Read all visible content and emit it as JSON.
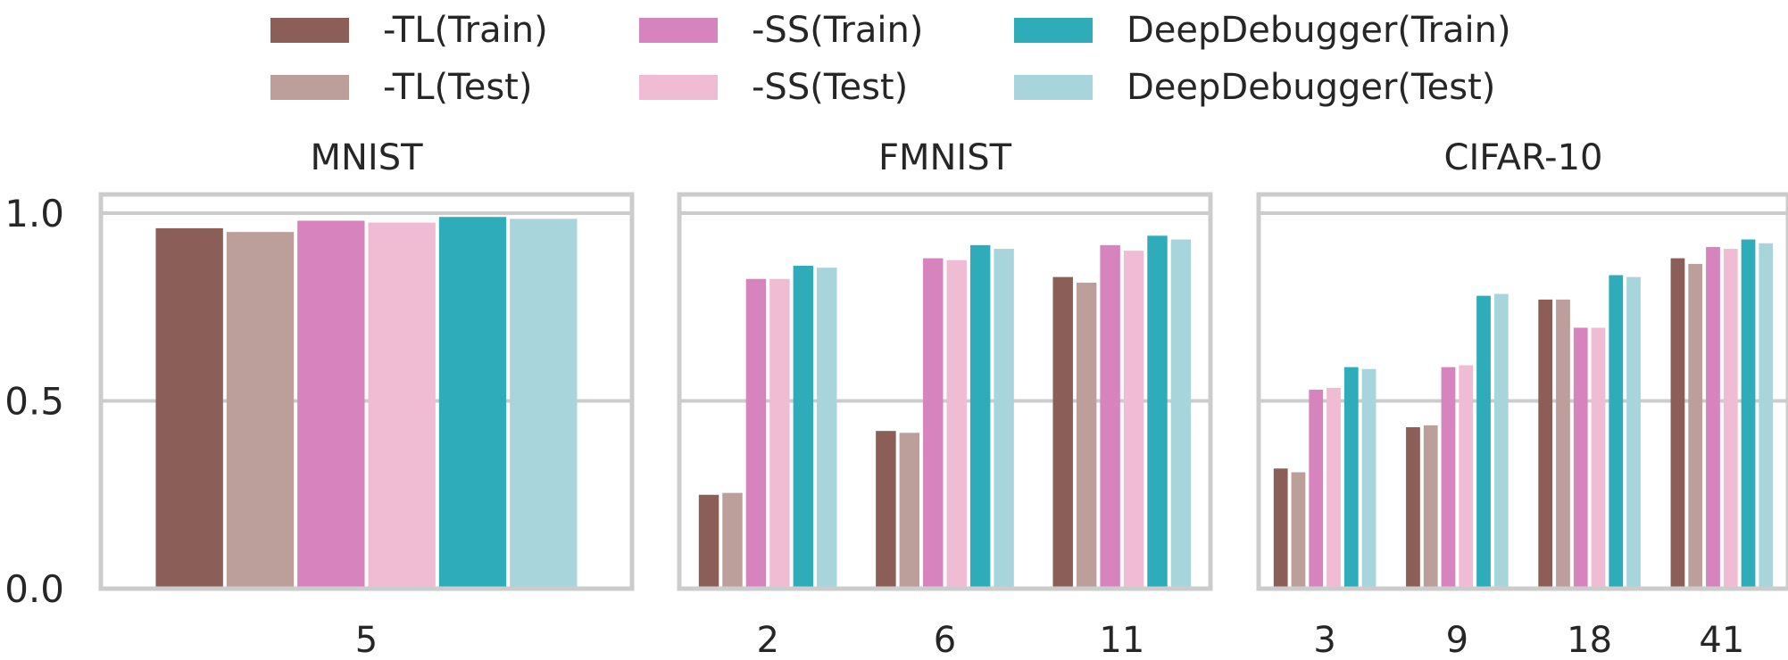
{
  "chart_data": {
    "type": "bar",
    "legend": {
      "placement": "top-center",
      "entries": [
        {
          "label": "-TL(Train)",
          "color": "#8c5e58"
        },
        {
          "label": "-TL(Test)",
          "color": "#bc9e9a"
        },
        {
          "label": "-SS(Train)",
          "color": "#d683be"
        },
        {
          "label": "-SS(Test)",
          "color": "#f0bcd4"
        },
        {
          "label": "DeepDebugger(Train)",
          "color": "#2eacba"
        },
        {
          "label": "DeepDebugger(Test)",
          "color": "#a8d4dc"
        }
      ]
    },
    "ylim": [
      0,
      1
    ],
    "yticks": [
      "0.0",
      "0.5",
      "1.0"
    ],
    "grid": true,
    "panels": [
      {
        "title": "MNIST",
        "categories": [
          "5"
        ],
        "series": [
          {
            "name": "-TL(Train)",
            "values": [
              0.96
            ]
          },
          {
            "name": "-TL(Test)",
            "values": [
              0.95
            ]
          },
          {
            "name": "-SS(Train)",
            "values": [
              0.98
            ]
          },
          {
            "name": "-SS(Test)",
            "values": [
              0.975
            ]
          },
          {
            "name": "DeepDebugger(Train)",
            "values": [
              0.99
            ]
          },
          {
            "name": "DeepDebugger(Test)",
            "values": [
              0.985
            ]
          }
        ]
      },
      {
        "title": "FMNIST",
        "categories": [
          "2",
          "6",
          "11"
        ],
        "series": [
          {
            "name": "-TL(Train)",
            "values": [
              0.25,
              0.42,
              0.83
            ]
          },
          {
            "name": "-TL(Test)",
            "values": [
              0.255,
              0.415,
              0.815
            ]
          },
          {
            "name": "-SS(Train)",
            "values": [
              0.825,
              0.88,
              0.915
            ]
          },
          {
            "name": "-SS(Test)",
            "values": [
              0.825,
              0.875,
              0.9
            ]
          },
          {
            "name": "DeepDebugger(Train)",
            "values": [
              0.86,
              0.915,
              0.94
            ]
          },
          {
            "name": "DeepDebugger(Test)",
            "values": [
              0.855,
              0.905,
              0.93
            ]
          }
        ]
      },
      {
        "title": "CIFAR-10",
        "categories": [
          "3",
          "9",
          "18",
          "41"
        ],
        "series": [
          {
            "name": "-TL(Train)",
            "values": [
              0.32,
              0.43,
              0.77,
              0.88
            ]
          },
          {
            "name": "-TL(Test)",
            "values": [
              0.31,
              0.435,
              0.77,
              0.865
            ]
          },
          {
            "name": "-SS(Train)",
            "values": [
              0.53,
              0.59,
              0.695,
              0.91
            ]
          },
          {
            "name": "-SS(Test)",
            "values": [
              0.535,
              0.595,
              0.695,
              0.905
            ]
          },
          {
            "name": "DeepDebugger(Train)",
            "values": [
              0.59,
              0.78,
              0.835,
              0.93
            ]
          },
          {
            "name": "DeepDebugger(Test)",
            "values": [
              0.585,
              0.785,
              0.83,
              0.92
            ]
          }
        ]
      }
    ]
  }
}
